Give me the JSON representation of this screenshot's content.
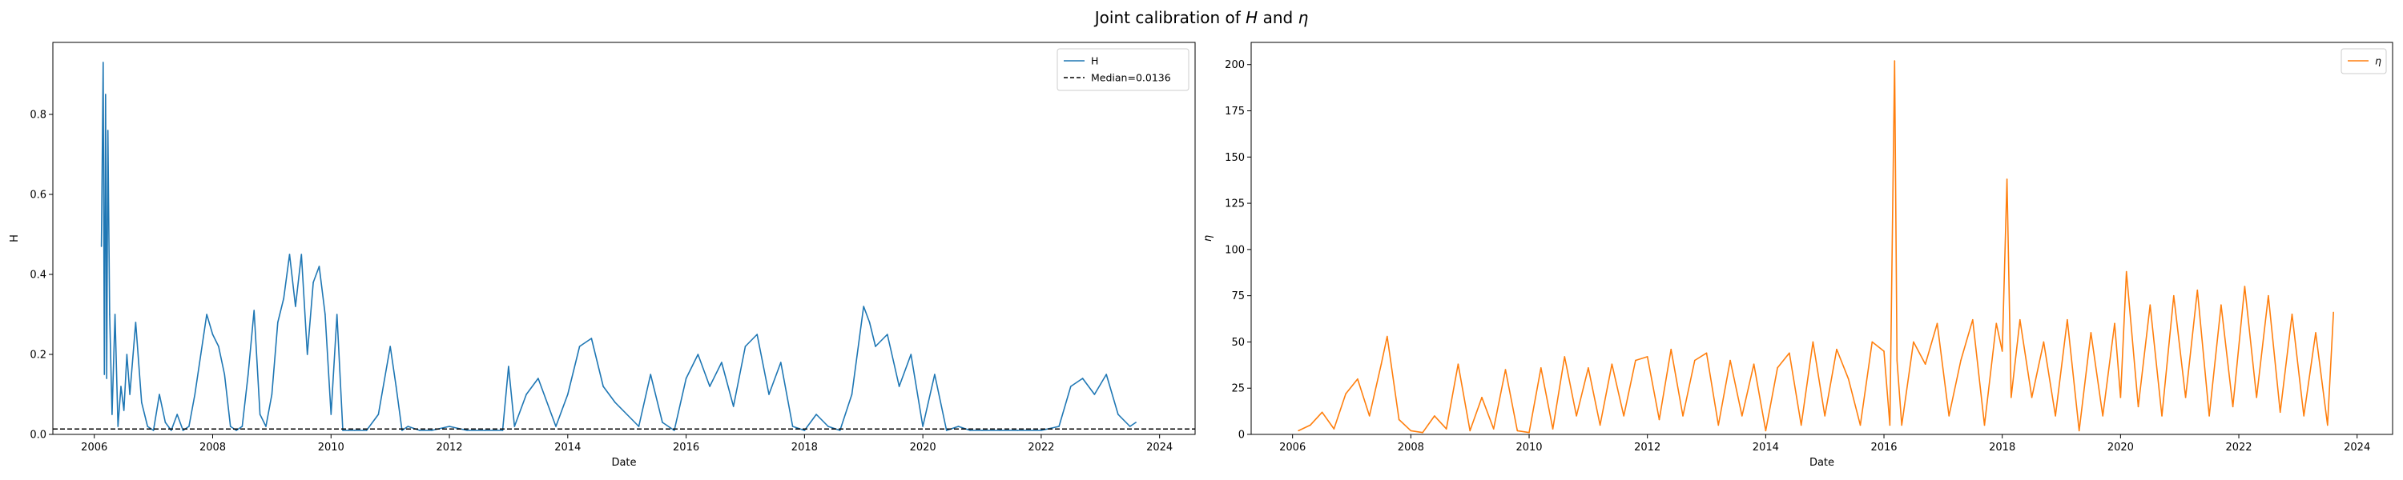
{
  "figure": {
    "title_parts": [
      "Joint calibration of ",
      "H",
      " and ",
      "η"
    ]
  },
  "chart_data": [
    {
      "type": "line",
      "xlabel": "Date",
      "ylabel": "H",
      "xlim": [
        2005.3,
        2024.6
      ],
      "ylim": [
        0,
        0.98
      ],
      "x_ticks": [
        2006,
        2008,
        2010,
        2012,
        2014,
        2016,
        2018,
        2020,
        2022,
        2024
      ],
      "y_ticks": [
        0.0,
        0.2,
        0.4,
        0.6,
        0.8
      ],
      "y_tick_labels": [
        "0.0",
        "0.2",
        "0.4",
        "0.6",
        "0.8"
      ],
      "legend_position": "upper right",
      "grid": false,
      "series": [
        {
          "name": "H",
          "color": "#1f77b4",
          "style": "solid",
          "x": [
            2006.12,
            2006.15,
            2006.17,
            2006.19,
            2006.21,
            2006.23,
            2006.26,
            2006.3,
            2006.35,
            2006.4,
            2006.45,
            2006.5,
            2006.55,
            2006.6,
            2006.7,
            2006.8,
            2006.9,
            2007.0,
            2007.1,
            2007.2,
            2007.3,
            2007.4,
            2007.5,
            2007.6,
            2007.7,
            2007.8,
            2007.9,
            2008.0,
            2008.1,
            2008.2,
            2008.3,
            2008.4,
            2008.5,
            2008.6,
            2008.7,
            2008.8,
            2008.9,
            2009.0,
            2009.1,
            2009.2,
            2009.3,
            2009.4,
            2009.5,
            2009.6,
            2009.7,
            2009.8,
            2009.9,
            2010.0,
            2010.1,
            2010.2,
            2010.3,
            2010.4,
            2010.6,
            2010.8,
            2011.0,
            2011.1,
            2011.2,
            2011.3,
            2011.5,
            2011.7,
            2012.0,
            2012.3,
            2012.6,
            2012.9,
            2013.0,
            2013.1,
            2013.3,
            2013.5,
            2013.8,
            2014.0,
            2014.2,
            2014.4,
            2014.6,
            2014.8,
            2015.0,
            2015.2,
            2015.4,
            2015.6,
            2015.8,
            2016.0,
            2016.2,
            2016.4,
            2016.6,
            2016.8,
            2017.0,
            2017.2,
            2017.4,
            2017.6,
            2017.8,
            2018.0,
            2018.2,
            2018.4,
            2018.6,
            2018.8,
            2019.0,
            2019.1,
            2019.2,
            2019.4,
            2019.6,
            2019.8,
            2020.0,
            2020.2,
            2020.4,
            2020.6,
            2020.8,
            2021.0,
            2021.3,
            2021.6,
            2022.0,
            2022.3,
            2022.5,
            2022.7,
            2022.9,
            2023.1,
            2023.3,
            2023.5,
            2023.6
          ],
          "values": [
            0.47,
            0.93,
            0.15,
            0.85,
            0.14,
            0.76,
            0.3,
            0.05,
            0.3,
            0.02,
            0.12,
            0.06,
            0.2,
            0.1,
            0.28,
            0.08,
            0.02,
            0.01,
            0.1,
            0.03,
            0.01,
            0.05,
            0.01,
            0.02,
            0.1,
            0.2,
            0.3,
            0.25,
            0.22,
            0.15,
            0.02,
            0.01,
            0.02,
            0.15,
            0.31,
            0.05,
            0.02,
            0.1,
            0.28,
            0.34,
            0.45,
            0.32,
            0.45,
            0.2,
            0.38,
            0.42,
            0.3,
            0.05,
            0.3,
            0.01,
            0.01,
            0.01,
            0.01,
            0.05,
            0.22,
            0.12,
            0.01,
            0.02,
            0.01,
            0.01,
            0.02,
            0.01,
            0.01,
            0.01,
            0.17,
            0.02,
            0.1,
            0.14,
            0.02,
            0.1,
            0.22,
            0.24,
            0.12,
            0.08,
            0.05,
            0.02,
            0.15,
            0.03,
            0.01,
            0.14,
            0.2,
            0.12,
            0.18,
            0.07,
            0.22,
            0.25,
            0.1,
            0.18,
            0.02,
            0.01,
            0.05,
            0.02,
            0.01,
            0.1,
            0.32,
            0.28,
            0.22,
            0.25,
            0.12,
            0.2,
            0.02,
            0.15,
            0.01,
            0.02,
            0.01,
            0.01,
            0.01,
            0.01,
            0.01,
            0.02,
            0.12,
            0.14,
            0.1,
            0.15,
            0.05,
            0.02,
            0.03
          ]
        },
        {
          "name": "Median=0.0136",
          "color": "#000000",
          "style": "dashed",
          "constant": 0.0136
        }
      ]
    },
    {
      "type": "line",
      "xlabel": "Date",
      "ylabel": "η",
      "xlim": [
        2005.3,
        2024.6
      ],
      "ylim": [
        0,
        212
      ],
      "x_ticks": [
        2006,
        2008,
        2010,
        2012,
        2014,
        2016,
        2018,
        2020,
        2022,
        2024
      ],
      "y_ticks": [
        0,
        25,
        50,
        75,
        100,
        125,
        150,
        175,
        200
      ],
      "y_tick_labels": [
        "0",
        "25",
        "50",
        "75",
        "100",
        "125",
        "150",
        "175",
        "200"
      ],
      "legend_position": "upper right",
      "grid": false,
      "series": [
        {
          "name": "η",
          "color": "#ff7f0e",
          "style": "solid",
          "x": [
            2006.1,
            2006.3,
            2006.5,
            2006.7,
            2006.9,
            2007.1,
            2007.3,
            2007.5,
            2007.6,
            2007.8,
            2008.0,
            2008.2,
            2008.4,
            2008.6,
            2008.8,
            2009.0,
            2009.2,
            2009.4,
            2009.6,
            2009.8,
            2010.0,
            2010.2,
            2010.4,
            2010.6,
            2010.8,
            2011.0,
            2011.2,
            2011.4,
            2011.6,
            2011.8,
            2012.0,
            2012.2,
            2012.4,
            2012.6,
            2012.8,
            2013.0,
            2013.2,
            2013.4,
            2013.6,
            2013.8,
            2014.0,
            2014.2,
            2014.4,
            2014.6,
            2014.8,
            2015.0,
            2015.2,
            2015.4,
            2015.6,
            2015.8,
            2016.0,
            2016.1,
            2016.18,
            2016.22,
            2016.3,
            2016.5,
            2016.7,
            2016.9,
            2017.1,
            2017.3,
            2017.5,
            2017.7,
            2017.9,
            2018.0,
            2018.08,
            2018.15,
            2018.3,
            2018.5,
            2018.7,
            2018.9,
            2019.1,
            2019.3,
            2019.5,
            2019.7,
            2019.9,
            2020.0,
            2020.1,
            2020.3,
            2020.5,
            2020.7,
            2020.9,
            2021.1,
            2021.3,
            2021.5,
            2021.7,
            2021.9,
            2022.1,
            2022.3,
            2022.5,
            2022.7,
            2022.9,
            2023.1,
            2023.3,
            2023.5,
            2023.6
          ],
          "values": [
            2,
            5,
            12,
            3,
            22,
            30,
            10,
            38,
            53,
            8,
            2,
            1,
            10,
            3,
            38,
            2,
            20,
            3,
            35,
            2,
            1,
            36,
            3,
            42,
            10,
            36,
            5,
            38,
            10,
            40,
            42,
            8,
            46,
            10,
            40,
            44,
            5,
            40,
            10,
            38,
            2,
            36,
            44,
            5,
            50,
            10,
            46,
            30,
            5,
            50,
            45,
            5,
            202,
            40,
            5,
            50,
            38,
            60,
            10,
            40,
            62,
            5,
            60,
            45,
            138,
            20,
            62,
            20,
            50,
            10,
            62,
            2,
            55,
            10,
            60,
            20,
            88,
            15,
            70,
            10,
            75,
            20,
            78,
            10,
            70,
            15,
            80,
            20,
            75,
            12,
            65,
            10,
            55,
            5,
            66
          ]
        }
      ]
    }
  ]
}
